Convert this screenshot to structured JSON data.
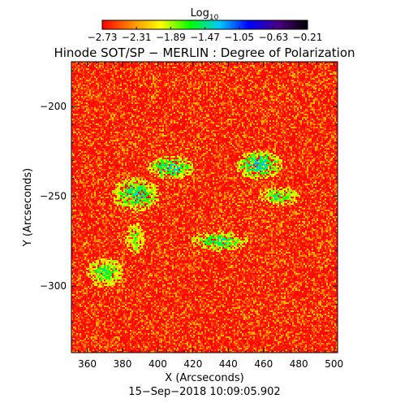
{
  "chart_data": {
    "type": "heatmap",
    "title": "Hinode SOT/SP − MERLIN : Degree of Polarization",
    "xlabel": "X (Arcseconds)",
    "ylabel": "Y (Arcseconds)",
    "timestamp": "15−Sep−2018 10:09:05.902",
    "xlim": [
      351,
      502
    ],
    "ylim": [
      -337,
      -175
    ],
    "xticks": [
      360,
      380,
      400,
      420,
      440,
      460,
      480,
      500
    ],
    "xtick_labels": [
      "360",
      "380",
      "400",
      "420",
      "440",
      "460",
      "480",
      "500"
    ],
    "yticks": [
      -200,
      -250,
      -300
    ],
    "ytick_labels": [
      "−200",
      "−250",
      "−300"
    ],
    "colorbar": {
      "title_base": "Log",
      "title_sub": "10",
      "range": [
        -2.73,
        -0.21
      ],
      "ticks": [
        -2.73,
        -2.31,
        -1.89,
        -1.47,
        -1.05,
        -0.63,
        -0.21
      ],
      "tick_labels": [
        "−2.73",
        "−2.31",
        "−1.89",
        "−1.47",
        "−1.05",
        "−0.63",
        "−0.21"
      ],
      "colormap": [
        "#ff0000",
        "#ff8a00",
        "#ffff00",
        "#00ff00",
        "#00c8ff",
        "#0000ff",
        "#4b0082",
        "#000000"
      ]
    },
    "features": [
      {
        "type": "network patch",
        "x": [
          375,
          400
        ],
        "y": [
          -258,
          -240
        ],
        "level": -1.3
      },
      {
        "type": "network patch",
        "x": [
          395,
          420
        ],
        "y": [
          -240,
          -228
        ],
        "level": -1.2
      },
      {
        "type": "network patch",
        "x": [
          445,
          470
        ],
        "y": [
          -240,
          -225
        ],
        "level": -1.2
      },
      {
        "type": "network patch",
        "x": [
          458,
          480
        ],
        "y": [
          -255,
          -245
        ],
        "level": -1.4
      },
      {
        "type": "network patch",
        "x": [
          420,
          450
        ],
        "y": [
          -280,
          -270
        ],
        "level": -1.3
      },
      {
        "type": "network patch",
        "x": [
          360,
          380
        ],
        "y": [
          -300,
          -285
        ],
        "level": -1.4
      },
      {
        "type": "network patch",
        "x": [
          382,
          392
        ],
        "y": [
          -282,
          -265
        ],
        "level": -1.5
      }
    ]
  }
}
